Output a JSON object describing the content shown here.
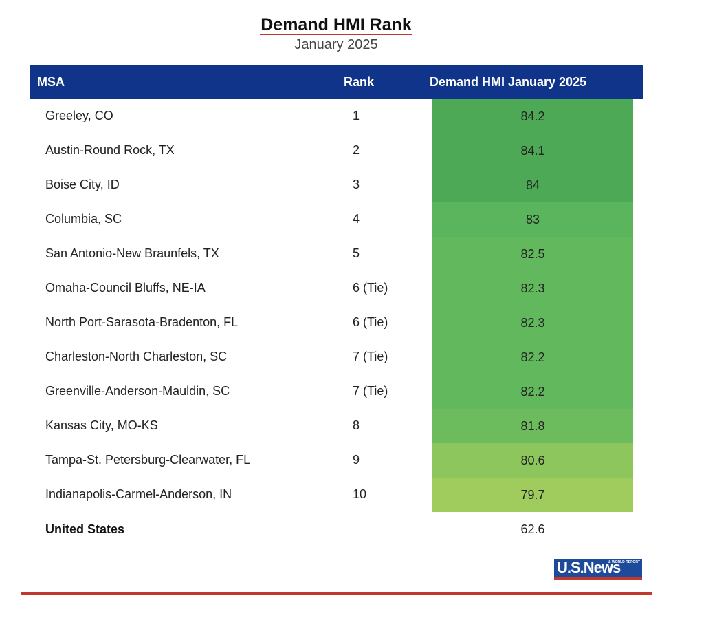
{
  "title": "Demand HMI Rank",
  "subtitle": "January 2025",
  "table": {
    "headers": {
      "msa": "MSA",
      "rank": "Rank",
      "hmi": "Demand HMI January 2025"
    },
    "header_color": "#103489",
    "rows": [
      {
        "msa": "Greeley, CO",
        "rank": "1",
        "value": "84.2",
        "color": "#4ea957"
      },
      {
        "msa": "Austin-Round Rock, TX",
        "rank": "2",
        "value": "84.1",
        "color": "#4ea957"
      },
      {
        "msa": "Boise City, ID",
        "rank": "3",
        "value": "84",
        "color": "#4ea957"
      },
      {
        "msa": "Columbia, SC",
        "rank": "4",
        "value": "83",
        "color": "#5ab55c"
      },
      {
        "msa": "San Antonio-New Braunfels, TX",
        "rank": "5",
        "value": "82.5",
        "color": "#61b85d"
      },
      {
        "msa": "Omaha-Council Bluffs, NE-IA",
        "rank": "6 (Tie)",
        "value": "82.3",
        "color": "#61b85d"
      },
      {
        "msa": "North Port-Sarasota-Bradenton, FL",
        "rank": "6 (Tie)",
        "value": "82.3",
        "color": "#61b85d"
      },
      {
        "msa": "Charleston-North Charleston, SC",
        "rank": "7 (Tie)",
        "value": "82.2",
        "color": "#61b85d"
      },
      {
        "msa": "Greenville-Anderson-Mauldin, SC",
        "rank": "7 (Tie)",
        "value": "82.2",
        "color": "#61b85d"
      },
      {
        "msa": "Kansas City, MO-KS",
        "rank": "8",
        "value": "81.8",
        "color": "#6cbb5c"
      },
      {
        "msa": "Tampa-St. Petersburg-Clearwater, FL",
        "rank": "9",
        "value": "80.6",
        "color": "#8cc65c"
      },
      {
        "msa": "Indianapolis-Carmel-Anderson, IN",
        "rank": "10",
        "value": "79.7",
        "color": "#a0cc5e"
      }
    ],
    "total": {
      "msa": "United States",
      "value": "62.6"
    }
  },
  "chart_data": {
    "type": "table",
    "title": "Demand HMI Rank",
    "subtitle": "January 2025",
    "columns": [
      "MSA",
      "Rank",
      "Demand HMI January 2025"
    ],
    "rows": [
      [
        "Greeley, CO",
        "1",
        84.2
      ],
      [
        "Austin-Round Rock, TX",
        "2",
        84.1
      ],
      [
        "Boise City, ID",
        "3",
        84
      ],
      [
        "Columbia, SC",
        "4",
        83
      ],
      [
        "San Antonio-New Braunfels, TX",
        "5",
        82.5
      ],
      [
        "Omaha-Council Bluffs, NE-IA",
        "6 (Tie)",
        82.3
      ],
      [
        "North Port-Sarasota-Bradenton, FL",
        "6 (Tie)",
        82.3
      ],
      [
        "Charleston-North Charleston, SC",
        "7 (Tie)",
        82.2
      ],
      [
        "Greenville-Anderson-Mauldin, SC",
        "7 (Tie)",
        82.2
      ],
      [
        "Kansas City, MO-KS",
        "8",
        81.8
      ],
      [
        "Tampa-St. Petersburg-Clearwater, FL",
        "9",
        80.6
      ],
      [
        "Indianapolis-Carmel-Anderson, IN",
        "10",
        79.7
      ],
      [
        "United States",
        "",
        62.6
      ]
    ]
  },
  "logo": {
    "text": "U.S.News",
    "tagline": "& WORLD REPORT",
    "color": "#1d4a9b",
    "accent": "#c0392b"
  }
}
